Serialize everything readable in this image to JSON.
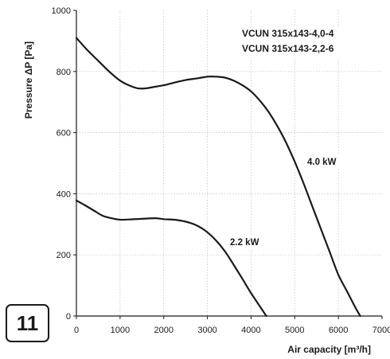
{
  "badge": "11",
  "chart_data": {
    "type": "line",
    "xlabel": "Air capacity [m³/h]",
    "ylabel": "Pressure ΔP [Pa]",
    "xlim": [
      0,
      7000
    ],
    "ylim": [
      0,
      1000
    ],
    "xticks": [
      0,
      1000,
      2000,
      3000,
      4000,
      5000,
      6000,
      7000
    ],
    "yticks": [
      0,
      200,
      400,
      600,
      800,
      1000
    ],
    "grid": true,
    "models": [
      "VCUN 315x143-4,0-4",
      "VCUN 315x143-2,2-6"
    ],
    "series": [
      {
        "name": "4.0 kW",
        "x": [
          0,
          250,
          500,
          750,
          1000,
          1200,
          1400,
          1600,
          1800,
          2000,
          2200,
          2500,
          2800,
          3000,
          3200,
          3400,
          3600,
          3800,
          4000,
          4200,
          4400,
          4600,
          4800,
          5000,
          5200,
          5400,
          5600,
          5800,
          6000,
          6200,
          6400,
          6500
        ],
        "y": [
          910,
          870,
          835,
          800,
          770,
          755,
          745,
          745,
          750,
          755,
          762,
          772,
          778,
          783,
          783,
          780,
          770,
          755,
          735,
          705,
          668,
          622,
          568,
          505,
          435,
          360,
          285,
          210,
          135,
          80,
          25,
          0
        ]
      },
      {
        "name": "2.2 kW",
        "x": [
          0,
          200,
          400,
          600,
          800,
          1000,
          1200,
          1500,
          1800,
          2000,
          2300,
          2600,
          2800,
          3000,
          3200,
          3400,
          3600,
          3800,
          4000,
          4200,
          4350
        ],
        "y": [
          378,
          362,
          345,
          328,
          320,
          315,
          316,
          318,
          320,
          317,
          314,
          305,
          293,
          274,
          247,
          212,
          168,
          122,
          75,
          32,
          0
        ]
      }
    ]
  }
}
